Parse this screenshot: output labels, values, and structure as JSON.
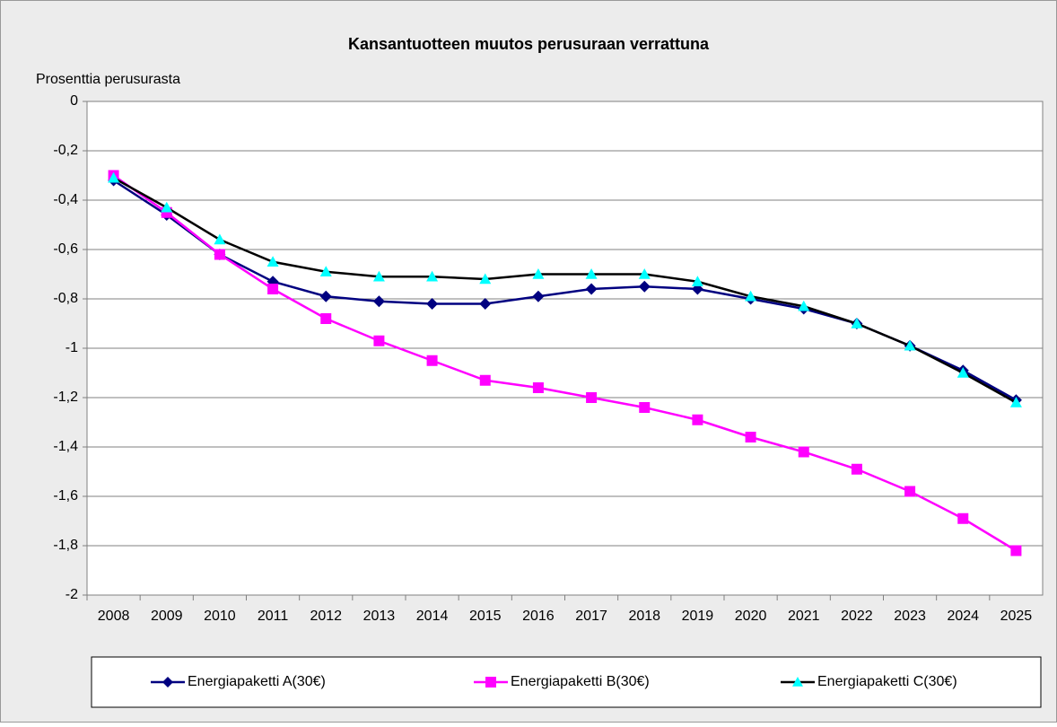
{
  "chart_data": {
    "type": "line",
    "title": "Kansantuotteen muutos perusuraan verrattuna",
    "y_label": "Prosenttia perusurasta",
    "categories": [
      "2008",
      "2009",
      "2010",
      "2011",
      "2012",
      "2013",
      "2014",
      "2015",
      "2016",
      "2017",
      "2018",
      "2019",
      "2020",
      "2021",
      "2022",
      "2023",
      "2024",
      "2025"
    ],
    "series": [
      {
        "name": "Energiapaketti A(30€)",
        "color": "#000080",
        "marker": "diamond",
        "marker_color": "#000080",
        "values": [
          -0.32,
          -0.46,
          -0.62,
          -0.73,
          -0.79,
          -0.81,
          -0.82,
          -0.82,
          -0.79,
          -0.76,
          -0.75,
          -0.76,
          -0.8,
          -0.84,
          -0.9,
          -0.99,
          -1.09,
          -1.21
        ]
      },
      {
        "name": "Energiapaketti B(30€)",
        "color": "#ff00ff",
        "marker": "square",
        "marker_color": "#ff00ff",
        "values": [
          -0.3,
          -0.45,
          -0.62,
          -0.76,
          -0.88,
          -0.97,
          -1.05,
          -1.13,
          -1.16,
          -1.2,
          -1.24,
          -1.29,
          -1.36,
          -1.42,
          -1.49,
          -1.58,
          -1.69,
          -1.82
        ]
      },
      {
        "name": "Energiapaketti C(30€)",
        "color": "#000000",
        "marker": "triangle",
        "marker_color": "#00ffff",
        "values": [
          -0.31,
          -0.43,
          -0.56,
          -0.65,
          -0.69,
          -0.71,
          -0.71,
          -0.72,
          -0.7,
          -0.7,
          -0.7,
          -0.73,
          -0.79,
          -0.83,
          -0.9,
          -0.99,
          -1.1,
          -1.22
        ]
      }
    ],
    "ylim": [
      -2,
      0
    ],
    "yticks": [
      0,
      {
        "value": -0.2,
        "label": "-0,2"
      },
      {
        "value": -0.4,
        "label": "-0,4"
      },
      {
        "value": -0.6,
        "label": "-0,6"
      },
      {
        "value": -0.8,
        "label": "-0,8"
      },
      -1,
      {
        "value": -1.2,
        "label": "-1,2"
      },
      {
        "value": -1.4,
        "label": "-1,4"
      },
      {
        "value": -1.6,
        "label": "-1,6"
      },
      {
        "value": -1.8,
        "label": "-1,8"
      },
      -2
    ],
    "grid": true,
    "legend": "bottom"
  }
}
